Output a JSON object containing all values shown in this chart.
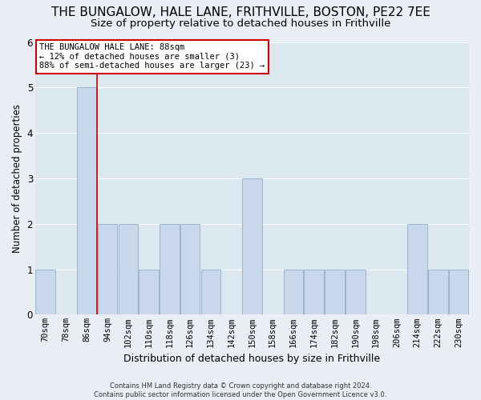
{
  "title": "THE BUNGALOW, HALE LANE, FRITHVILLE, BOSTON, PE22 7EE",
  "subtitle": "Size of property relative to detached houses in Frithville",
  "xlabel": "Distribution of detached houses by size in Frithville",
  "ylabel": "Number of detached properties",
  "categories": [
    "70sqm",
    "78sqm",
    "86sqm",
    "94sqm",
    "102sqm",
    "110sqm",
    "118sqm",
    "126sqm",
    "134sqm",
    "142sqm",
    "150sqm",
    "158sqm",
    "166sqm",
    "174sqm",
    "182sqm",
    "190sqm",
    "198sqm",
    "206sqm",
    "214sqm",
    "222sqm",
    "230sqm"
  ],
  "values": [
    1,
    0,
    5,
    2,
    2,
    1,
    2,
    2,
    1,
    0,
    3,
    0,
    1,
    1,
    1,
    1,
    0,
    0,
    2,
    1,
    1
  ],
  "bar_color": "#c8d8ea",
  "bar_edge_color": "#9ab4cc",
  "subject_line_color": "#cc0000",
  "subject_line_index": 2.5,
  "annotation_text": "THE BUNGALOW HALE LANE: 88sqm\n← 12% of detached houses are smaller (3)\n88% of semi-detached houses are larger (23) →",
  "annotation_box_color": "#ffffff",
  "annotation_box_edge_color": "#cc0000",
  "ylim": [
    0,
    6
  ],
  "yticks": [
    0,
    1,
    2,
    3,
    4,
    5,
    6
  ],
  "title_fontsize": 11,
  "subtitle_fontsize": 9.5,
  "xlabel_fontsize": 9,
  "ylabel_fontsize": 8.5,
  "tick_fontsize": 7.5,
  "annotation_fontsize": 7.5,
  "footer_text": "Contains HM Land Registry data © Crown copyright and database right 2024.\nContains public sector information licensed under the Open Government Licence v3.0.",
  "background_color": "#e8eef4",
  "plot_background_color": "#dce8f0",
  "grid_color": "#ffffff"
}
